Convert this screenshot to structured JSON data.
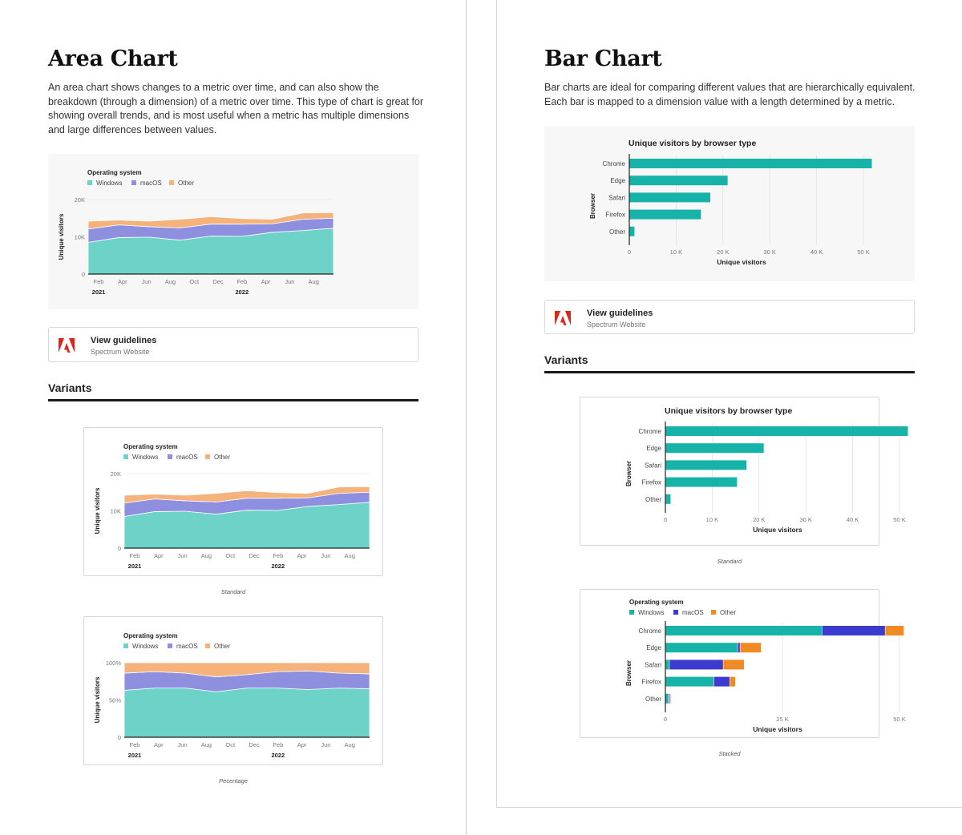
{
  "area_section": {
    "title": "Area Chart",
    "description": "An area chart shows changes to a metric over time, and can also show the breakdown (through a dimension) of a metric over time. This type of chart is great for showing overall trends, and is most useful when a metric has multiple dimensions and large differences between values.",
    "guidelines": {
      "title": "View guidelines",
      "subtitle": "Spectrum Website"
    },
    "variants_heading": "Variants",
    "variant_captions": [
      "Standard",
      "Pecentage"
    ]
  },
  "bar_section": {
    "title": "Bar Chart",
    "description": "Bar charts are ideal for comparing different values that are hierarchically equivalent. Each bar is mapped to a dimension value with a length determined by a metric.",
    "guidelines": {
      "title": "View guidelines",
      "subtitle": "Spectrum Website"
    },
    "variants_heading": "Variants",
    "variant_captions": [
      "Standard",
      "Stacked"
    ]
  },
  "colors": {
    "area_windows": "#6dd3c9",
    "area_macos": "#8f8fe0",
    "area_other": "#f5b27a",
    "bar_teal": "#17b3a8",
    "stack_windows": "#17b3a8",
    "stack_macos": "#3b3bd0",
    "stack_other": "#f08a24"
  },
  "chart_data": [
    {
      "id": "area_main",
      "type": "area",
      "stacked": true,
      "legend_title": "Operating system",
      "ylabel": "Unique visitors",
      "x_ticks": [
        "Feb",
        "Apr",
        "Jun",
        "Aug",
        "Oct",
        "Dec",
        "Feb",
        "Apr",
        "Jun",
        "Aug"
      ],
      "x_year_labels": [
        {
          "label": "2021",
          "at_tick": 0
        },
        {
          "label": "2022",
          "at_tick": 6
        }
      ],
      "y_ticks": [
        "0",
        "10K",
        "20K"
      ],
      "ylim": [
        0,
        20000
      ],
      "series": [
        {
          "name": "Windows",
          "values": [
            8500,
            9800,
            9900,
            9100,
            10200,
            10100,
            11200,
            11700,
            12300
          ]
        },
        {
          "name": "macOS",
          "values": [
            3600,
            3400,
            2800,
            3300,
            3200,
            3300,
            2300,
            3000,
            2700
          ]
        },
        {
          "name": "Other",
          "values": [
            2100,
            1300,
            1500,
            2300,
            2000,
            1500,
            1200,
            1700,
            1500
          ]
        }
      ]
    },
    {
      "id": "area_standard",
      "type": "area",
      "stacked": true,
      "legend_title": "Operating system",
      "ylabel": "Unique visitors",
      "x_ticks": [
        "Feb",
        "Apr",
        "Jun",
        "Aug",
        "Oct",
        "Dec",
        "Feb",
        "Apr",
        "Jun",
        "Aug"
      ],
      "x_year_labels": [
        {
          "label": "2021",
          "at_tick": 0
        },
        {
          "label": "2022",
          "at_tick": 6
        }
      ],
      "y_ticks": [
        "0",
        "10K",
        "20K"
      ],
      "ylim": [
        0,
        20000
      ],
      "series": [
        {
          "name": "Windows",
          "values": [
            8500,
            9800,
            9900,
            9100,
            10200,
            10100,
            11200,
            11700,
            12300
          ]
        },
        {
          "name": "macOS",
          "values": [
            3600,
            3400,
            2800,
            3300,
            3200,
            3300,
            2300,
            3000,
            2700
          ]
        },
        {
          "name": "Other",
          "values": [
            2100,
            1300,
            1500,
            2300,
            2000,
            1500,
            1200,
            1700,
            1500
          ]
        }
      ]
    },
    {
      "id": "area_percentage",
      "type": "area",
      "stacked": true,
      "percentage": true,
      "legend_title": "Operating system",
      "ylabel": "Unique visitors",
      "x_ticks": [
        "Feb",
        "Apr",
        "Jun",
        "Aug",
        "Oct",
        "Dec",
        "Feb",
        "Apr",
        "Jun",
        "Aug"
      ],
      "x_year_labels": [
        {
          "label": "2021",
          "at_tick": 0
        },
        {
          "label": "2022",
          "at_tick": 6
        }
      ],
      "y_ticks": [
        "0",
        "50%",
        "100%"
      ],
      "ylim": [
        0,
        100
      ],
      "series": [
        {
          "name": "Windows",
          "values": [
            63,
            66,
            66,
            61,
            66,
            66,
            64,
            66,
            65
          ]
        },
        {
          "name": "macOS",
          "values": [
            23,
            22,
            20,
            20,
            18,
            22,
            25,
            20,
            20
          ]
        },
        {
          "name": "Other",
          "values": [
            14,
            12,
            14,
            19,
            16,
            12,
            11,
            14,
            15
          ]
        }
      ]
    },
    {
      "id": "bar_main",
      "type": "bar",
      "orientation": "horizontal",
      "title": "Unique visitors by browser type",
      "xlabel": "Unique visitors",
      "ylabel": "Browser",
      "categories": [
        "Chrome",
        "Edge",
        "Safari",
        "Firefox",
        "Other"
      ],
      "values": [
        51800,
        21000,
        17300,
        15300,
        1100
      ],
      "x_ticks": [
        "0",
        "10 K",
        "20 K",
        "30 K",
        "40 K",
        "50 K"
      ],
      "xlim": [
        0,
        50000
      ]
    },
    {
      "id": "bar_standard",
      "type": "bar",
      "orientation": "horizontal",
      "title": "Unique visitors by browser type",
      "xlabel": "Unique visitors",
      "ylabel": "Browser",
      "categories": [
        "Chrome",
        "Edge",
        "Safari",
        "Firefox",
        "Other"
      ],
      "values": [
        51800,
        21000,
        17300,
        15300,
        1100
      ],
      "x_ticks": [
        "0",
        "10 K",
        "20 K",
        "30 K",
        "40 K",
        "50 K"
      ],
      "xlim": [
        0,
        50000
      ]
    },
    {
      "id": "bar_stacked",
      "type": "bar",
      "orientation": "horizontal",
      "stacked": true,
      "legend_title": "Operating system",
      "xlabel": "Unique visitors",
      "ylabel": "Browser",
      "categories": [
        "Chrome",
        "Edge",
        "Safari",
        "Firefox",
        "Other"
      ],
      "x_ticks": [
        "0",
        "25 K",
        "50 K"
      ],
      "xlim": [
        0,
        50000
      ],
      "series": [
        {
          "name": "Windows",
          "values": [
            33500,
            15500,
            900,
            10400,
            700
          ]
        },
        {
          "name": "macOS",
          "values": [
            13500,
            500,
            11500,
            3400,
            200
          ]
        },
        {
          "name": "Other",
          "values": [
            4000,
            4500,
            4500,
            1200,
            300
          ]
        }
      ]
    }
  ]
}
